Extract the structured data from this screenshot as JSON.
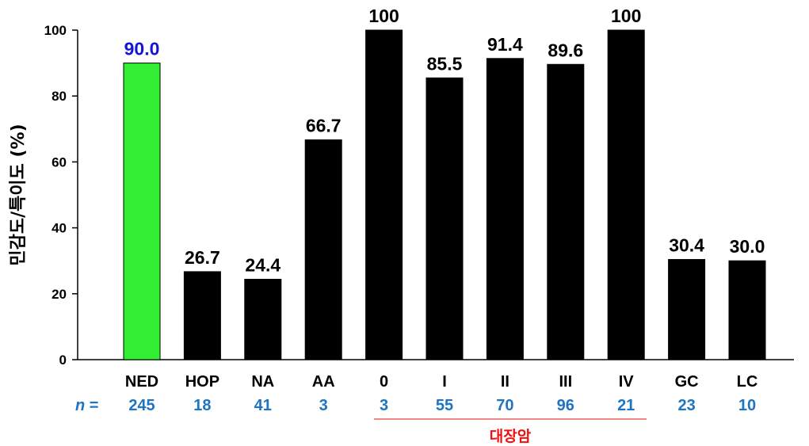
{
  "chart_data": {
    "type": "bar",
    "categories": [
      "NED",
      "HOP",
      "NA",
      "AA",
      "0",
      "I",
      "II",
      "III",
      "IV",
      "GC",
      "LC"
    ],
    "values": [
      90.0,
      26.7,
      24.4,
      66.7,
      100,
      85.5,
      91.4,
      89.6,
      100,
      30.4,
      30.0
    ],
    "value_labels": [
      "90.0",
      "26.7",
      "24.4",
      "66.7",
      "100",
      "85.5",
      "91.4",
      "89.6",
      "100",
      "30.4",
      "30.0"
    ],
    "n_prefix": "n =",
    "n_values": [
      "245",
      "18",
      "41",
      "3",
      "3",
      "55",
      "70",
      "96",
      "21",
      "23",
      "10"
    ],
    "ylabel": "민감도/특이도 (%)",
    "ylim": [
      0,
      100
    ],
    "yticks": [
      "0",
      "20",
      "40",
      "60",
      "80",
      "100"
    ],
    "group": {
      "label": "대장암",
      "categories": [
        "0",
        "I",
        "II",
        "III",
        "IV"
      ]
    },
    "grid": false,
    "colors": {
      "highlight_bar": "#33ee33",
      "bar": "#000000",
      "highlight_value_label": "#1515d8",
      "value_label": "#000000",
      "n_label": "#1f74c2",
      "group_label": "#ee1111",
      "group_line": "#ee6060"
    }
  }
}
